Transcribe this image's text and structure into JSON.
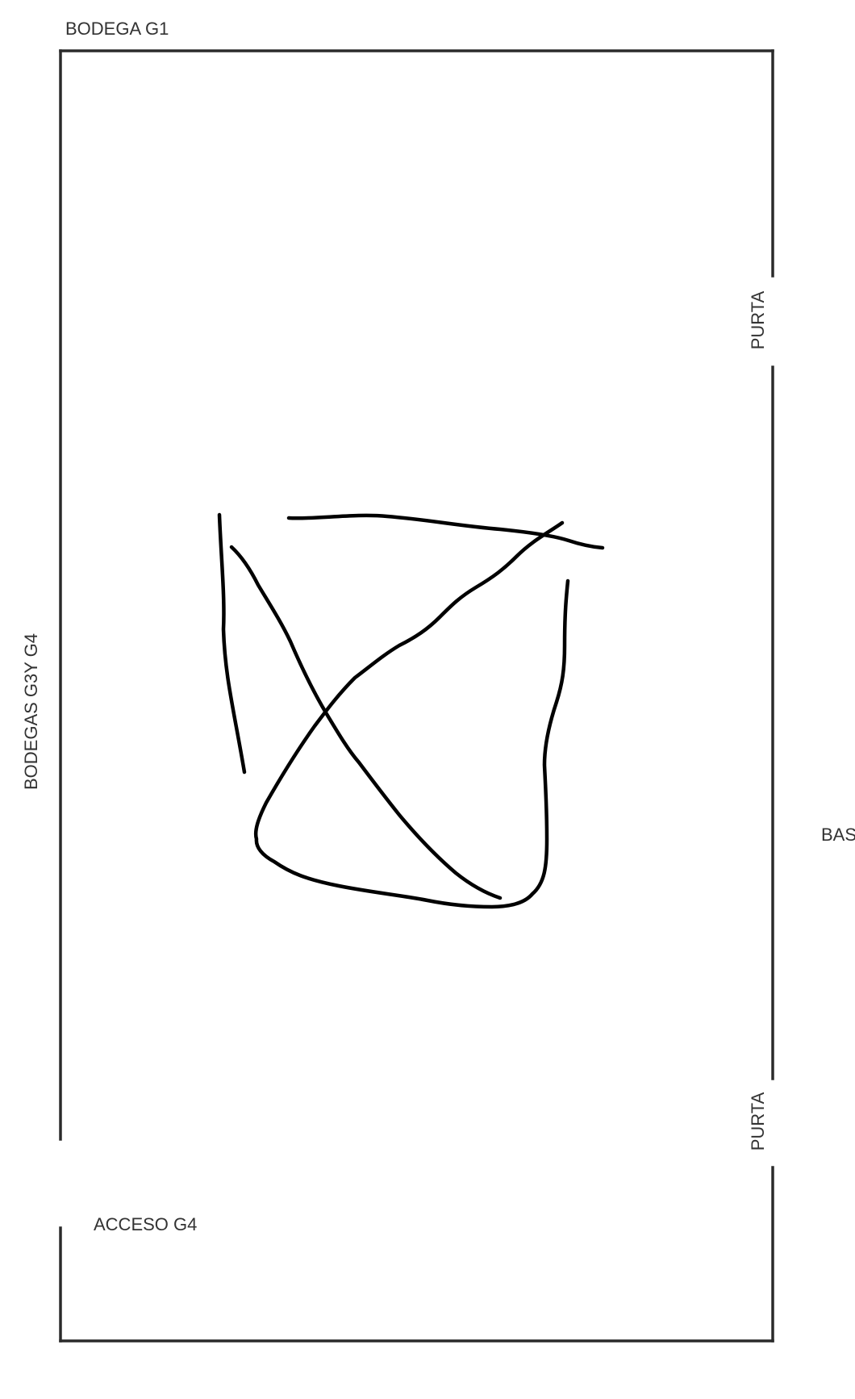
{
  "labels": {
    "top": "BODEGA G1",
    "left": "BODEGAS G3Y G4",
    "door_upper": "PURTA",
    "door_lower": "PURTA",
    "access": "ACCESO G4",
    "right_cut": "BAS"
  },
  "colors": {
    "wall": "#2b2b2b",
    "sketch": "#000000",
    "text": "#333333",
    "background": "#ffffff"
  }
}
